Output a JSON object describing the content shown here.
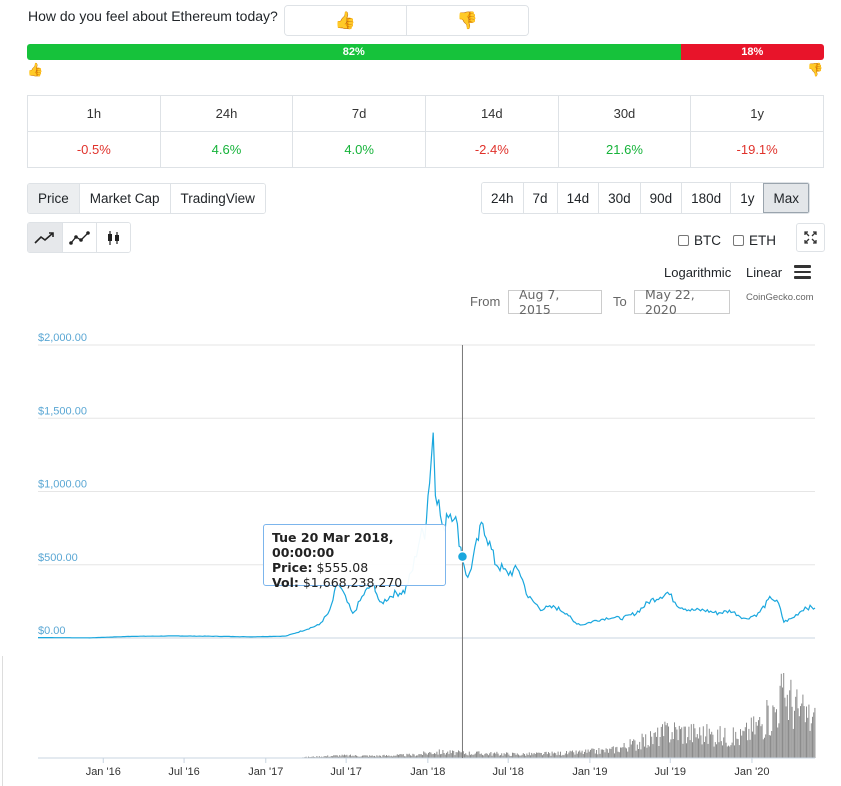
{
  "sentiment": {
    "question": "How do you feel about Ethereum today?",
    "up_icon": "thumbs-up",
    "down_icon": "thumbs-down",
    "up_glyph": "👍",
    "down_glyph": "👎",
    "good_pct_label": "82%",
    "bad_pct_label": "18%",
    "good_fraction": 0.82,
    "good_color": "#16c23b",
    "bad_color": "#e8142a"
  },
  "price_change": {
    "periods": [
      "1h",
      "24h",
      "7d",
      "14d",
      "30d",
      "1y"
    ],
    "values": [
      "-0.5%",
      "4.6%",
      "4.0%",
      "-2.4%",
      "21.6%",
      "-19.1%"
    ]
  },
  "tabs": [
    "Price",
    "Market Cap",
    "TradingView"
  ],
  "active_tab": "Price",
  "ranges": [
    "24h",
    "7d",
    "14d",
    "30d",
    "90d",
    "180d",
    "1y",
    "Max"
  ],
  "active_range": "Max",
  "chart_types": [
    "line-chart-icon",
    "point-line-chart-icon",
    "candlestick-icon"
  ],
  "compare": [
    "BTC",
    "ETH"
  ],
  "scale": {
    "log": "Logarithmic",
    "linear": "Linear"
  },
  "date_range": {
    "from_label": "From",
    "from": "Aug 7, 2015",
    "to_label": "To",
    "to": "May 22, 2020"
  },
  "credit": "CoinGecko.com",
  "tooltip": {
    "date": "Tue 20 Mar 2018, 00:00:00",
    "price_label": "Price:",
    "price": "$555.08",
    "vol_label": "Vol:",
    "vol": "$1,668,238,270"
  },
  "colors": {
    "line": "#1aa7de",
    "volume": "#8c8c8c",
    "axis_label": "#5aa7d4"
  },
  "chart_data": {
    "type": "line",
    "x_unit": "date",
    "ylim": [
      0,
      2000
    ],
    "y_ticks": [
      "$0.00",
      "$500.00",
      "$1,000.00",
      "$1,500.00",
      "$2,000.00"
    ],
    "y_tick_values": [
      0,
      500,
      1000,
      1500,
      2000
    ],
    "x_ticks": [
      "Jan '16",
      "Jul '16",
      "Jan '17",
      "Jul '17",
      "Jan '18",
      "Jul '18",
      "Jan '19",
      "Jul '19",
      "Jan '20"
    ],
    "x_tick_dates": [
      "2016-01-01",
      "2016-07-01",
      "2017-01-01",
      "2017-07-01",
      "2018-01-01",
      "2018-07-01",
      "2019-01-01",
      "2019-07-01",
      "2020-01-01"
    ],
    "x_range": [
      "2015-08-07",
      "2020-05-22"
    ],
    "crosshair_date": "2018-03-20",
    "crosshair_value": 555.08,
    "series": [
      {
        "values_note_key": "price",
        "x": [
          "2015-08-07",
          "2015-12-01",
          "2016-03-01",
          "2016-06-15",
          "2016-09-01",
          "2016-12-01",
          "2017-02-15",
          "2017-03-20",
          "2017-05-01",
          "2017-05-25",
          "2017-06-12",
          "2017-06-25",
          "2017-07-16",
          "2017-08-10",
          "2017-09-01",
          "2017-09-15",
          "2017-10-15",
          "2017-11-10",
          "2017-11-28",
          "2017-12-15",
          "2017-12-25",
          "2018-01-05",
          "2018-01-13",
          "2018-01-18",
          "2018-02-06",
          "2018-02-12",
          "2018-03-01",
          "2018-03-20",
          "2018-04-01",
          "2018-04-25",
          "2018-05-05",
          "2018-06-01",
          "2018-06-28",
          "2018-07-25",
          "2018-08-15",
          "2018-09-12",
          "2018-10-15",
          "2018-11-10",
          "2018-11-25",
          "2018-12-14",
          "2019-01-15",
          "2019-02-15",
          "2019-03-15",
          "2019-04-15",
          "2019-05-15",
          "2019-06-25",
          "2019-07-20",
          "2019-08-15",
          "2019-09-15",
          "2019-10-15",
          "2019-11-15",
          "2019-12-17",
          "2020-01-15",
          "2020-02-14",
          "2020-03-01",
          "2020-03-13",
          "2020-04-01",
          "2020-04-30",
          "2020-05-22"
        ],
        "y": [
          3,
          1,
          11,
          14,
          12,
          8,
          13,
          45,
          90,
          180,
          380,
          300,
          160,
          300,
          380,
          230,
          300,
          320,
          470,
          700,
          720,
          1100,
          1400,
          1050,
          700,
          860,
          860,
          555,
          400,
          680,
          790,
          520,
          440,
          470,
          280,
          200,
          210,
          170,
          110,
          90,
          120,
          140,
          135,
          170,
          250,
          310,
          220,
          190,
          190,
          170,
          185,
          130,
          165,
          280,
          230,
          110,
          135,
          210,
          205
        ]
      },
      {
        "name": "",
        "values_note_key": "volume",
        "x": [
          "2015-08-07",
          "2016-06-15",
          "2017-03-01",
          "2017-06-15",
          "2017-09-01",
          "2017-12-01",
          "2018-01-15",
          "2018-03-01",
          "2018-05-01",
          "2018-08-01",
          "2018-11-15",
          "2019-02-15",
          "2019-05-15",
          "2019-07-01",
          "2019-10-01",
          "2019-12-01",
          "2020-02-15",
          "2020-03-12",
          "2020-04-15",
          "2020-05-22"
        ],
        "y": [
          0.02,
          0.05,
          0.1,
          0.8,
          0.7,
          1.0,
          2.0,
          1.7,
          1.5,
          1.2,
          1.6,
          2.5,
          6.0,
          9.0,
          7.5,
          6.5,
          14.0,
          22.0,
          15.0,
          12.0
        ]
      }
    ]
  }
}
